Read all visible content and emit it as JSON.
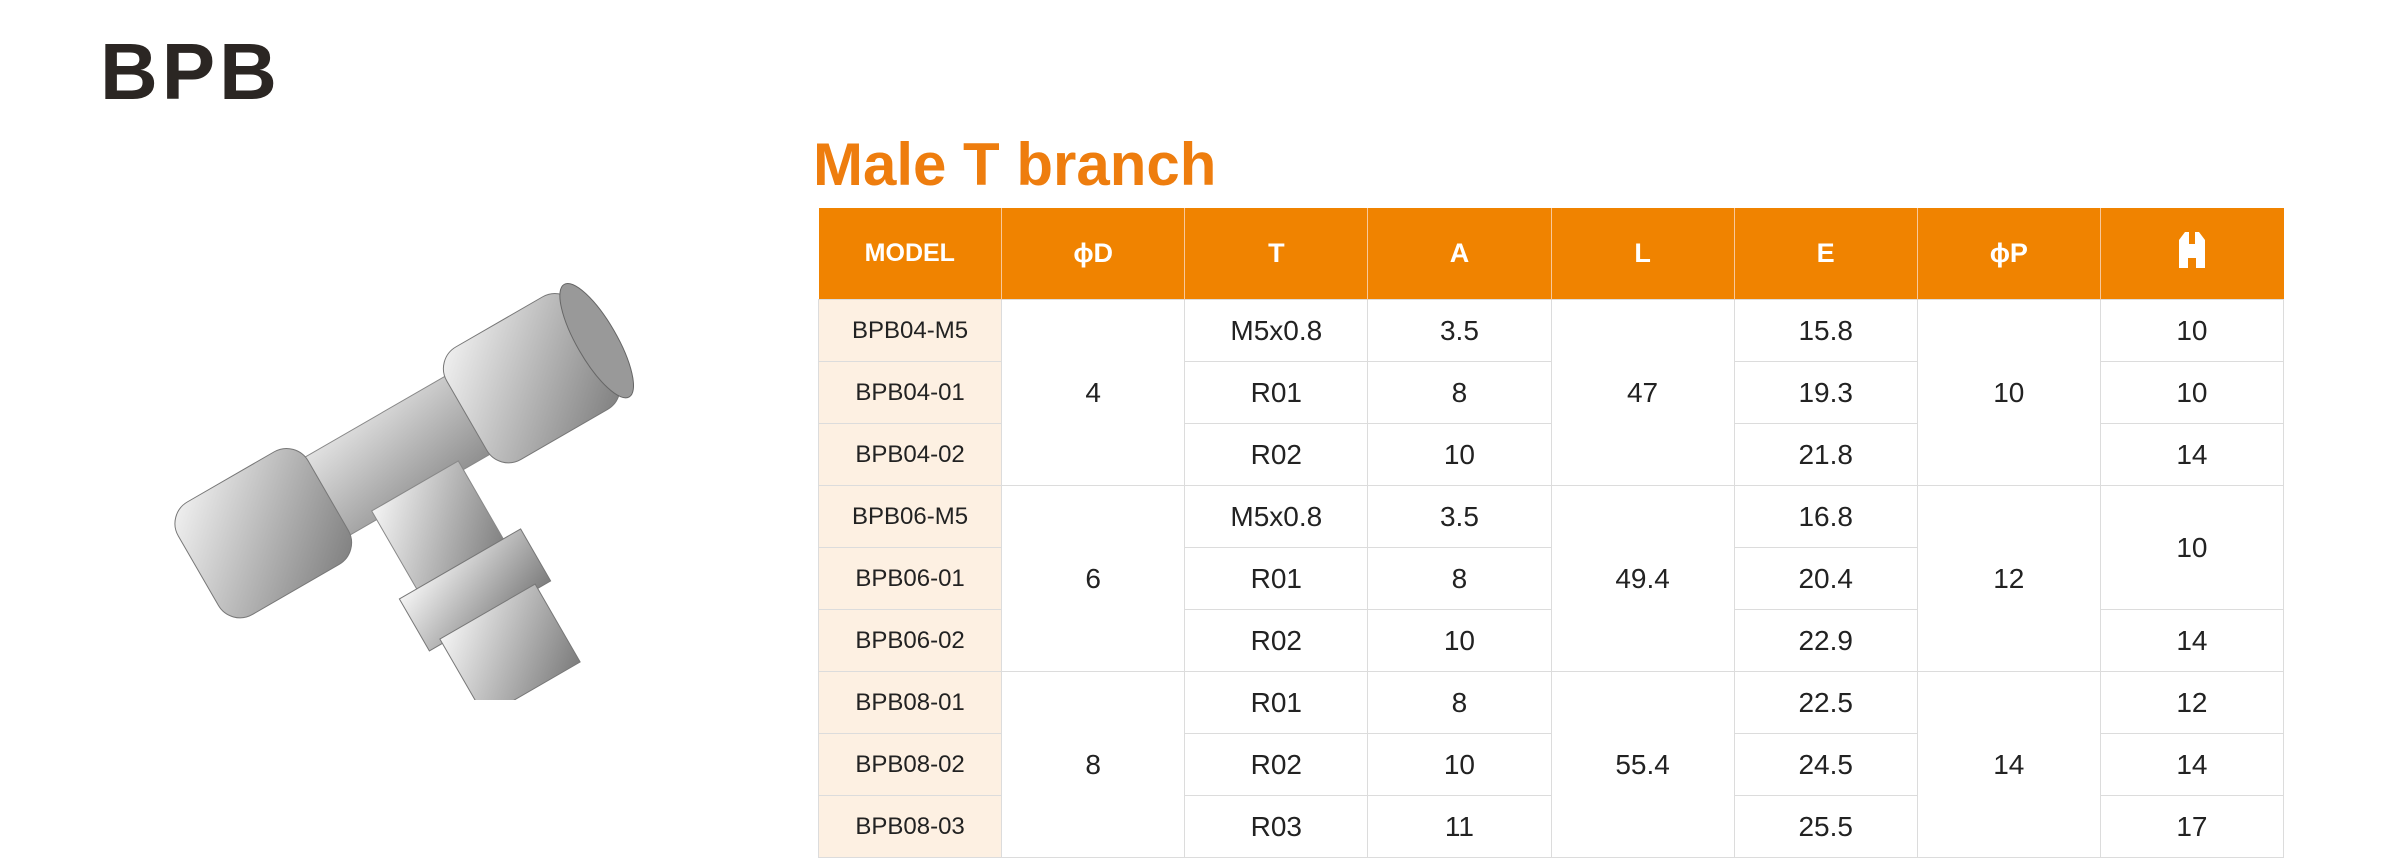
{
  "header": {
    "title": "BPB"
  },
  "table": {
    "title": "Male T branch",
    "columns": [
      "MODEL",
      "ϕD",
      "T",
      "A",
      "L",
      "E",
      "ϕP"
    ],
    "rows": [
      [
        "BPB04-M5",
        "M5x0.8",
        3.5,
        15.8
      ],
      [
        "BPB04-01",
        "R01",
        8,
        19.3
      ],
      [
        "BPB04-02",
        "R02",
        10,
        21.8
      ],
      [
        "BPB06-M5",
        "M5x0.8",
        3.5,
        16.8
      ],
      [
        "BPB06-01",
        "R01",
        8,
        20.4
      ],
      [
        "BPB06-02",
        "R02",
        10,
        22.9
      ],
      [
        "BPB08-01",
        "R01",
        8,
        22.5
      ],
      [
        "BPB08-02",
        "R02",
        10,
        24.5
      ],
      [
        "BPB08-03",
        "R03",
        11,
        25.5
      ]
    ],
    "d_groups": [
      4,
      6,
      8
    ],
    "l_groups": [
      47,
      49.4,
      55.4
    ],
    "p_groups": [
      10,
      12,
      14
    ],
    "wrench": [
      10,
      10,
      14,
      10,
      14,
      12,
      14,
      17
    ]
  }
}
